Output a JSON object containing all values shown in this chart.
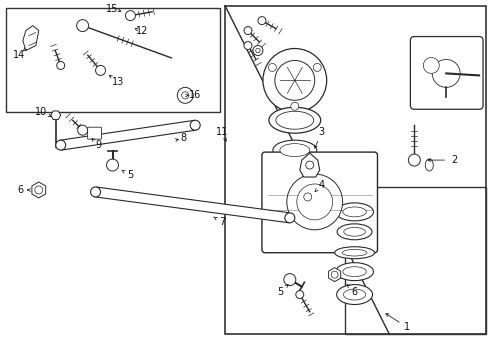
{
  "bg_color": "#ffffff",
  "line_color": "#2a2a2a",
  "border_color": "#333333",
  "text_color": "#111111",
  "fig_width": 4.9,
  "fig_height": 3.6,
  "dpi": 100
}
